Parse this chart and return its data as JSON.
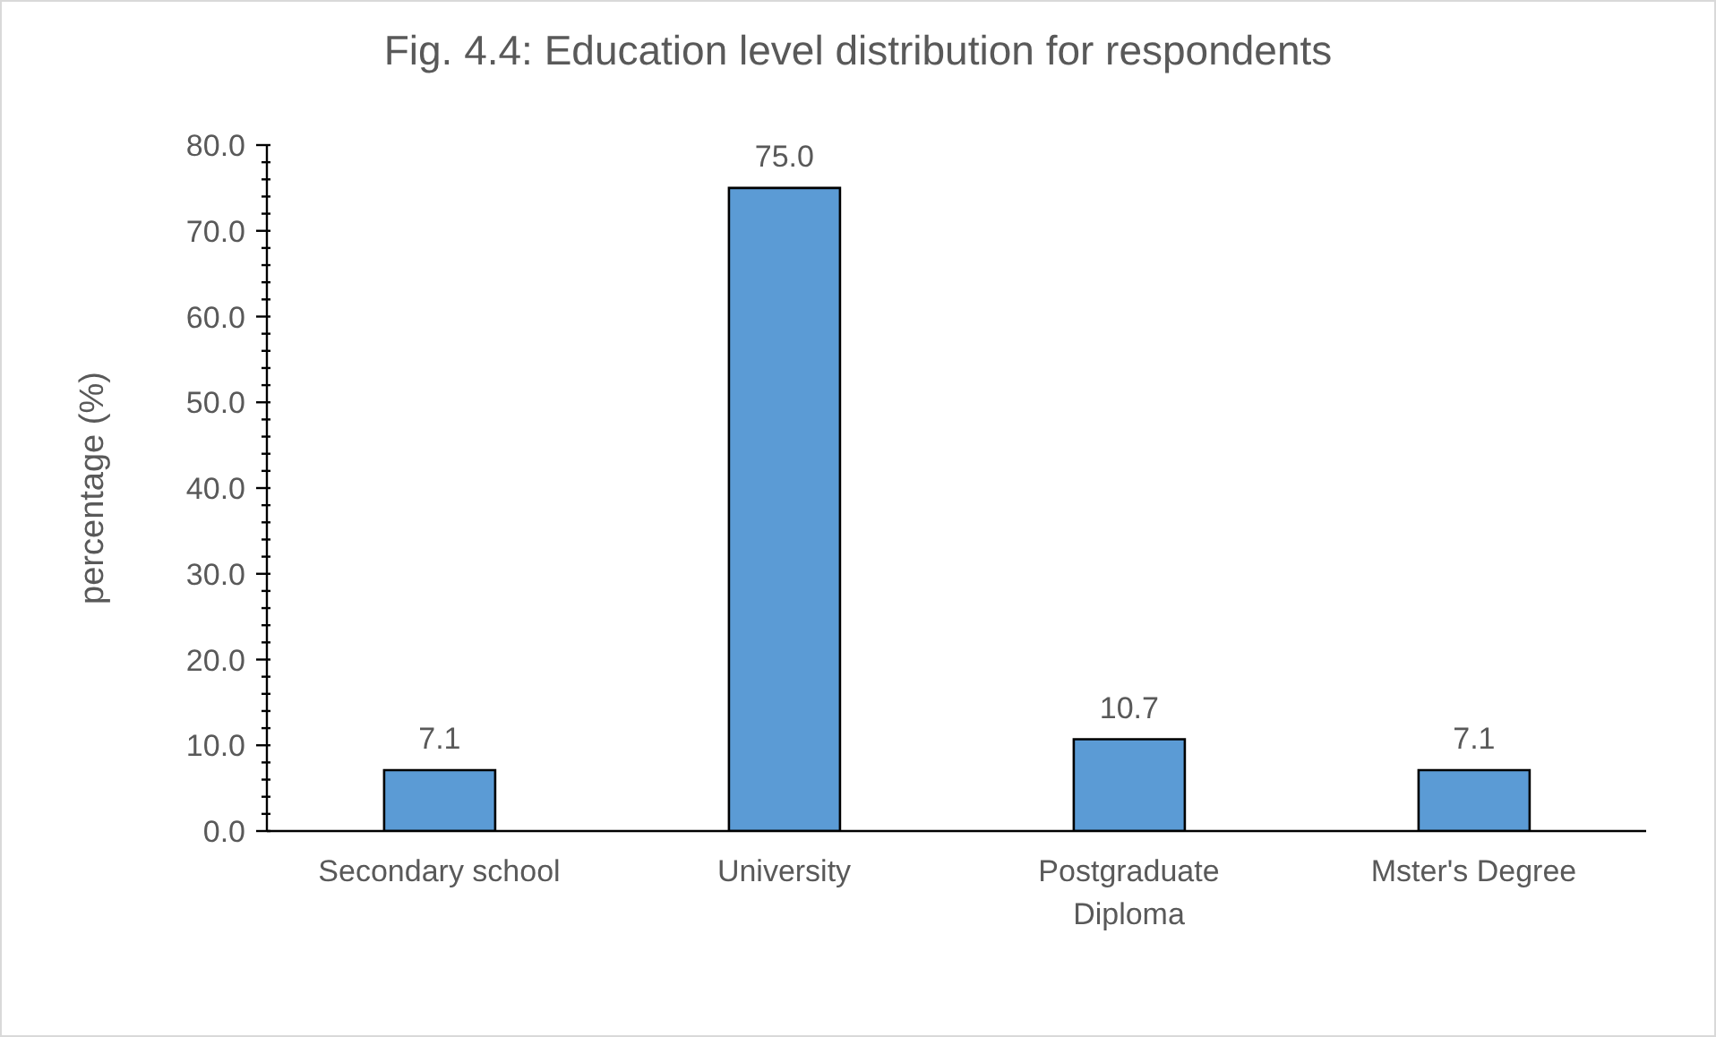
{
  "chart_data": {
    "type": "bar",
    "title": "Fig. 4.4: Education level distribution for respondents",
    "ylabel": "percentage (%)",
    "categories": [
      "Secondary school",
      "University",
      "Postgraduate Diploma",
      "Mster's Degree"
    ],
    "values": [
      7.1,
      75.0,
      10.7,
      7.1
    ],
    "value_labels": [
      "7.1",
      "75.0",
      "10.7",
      "7.1"
    ],
    "color": "#5b9bd5",
    "ylim": [
      0,
      80
    ],
    "yticks": [
      {
        "value": 0,
        "label": "0.0"
      },
      {
        "value": 2,
        "label": null
      },
      {
        "value": 4,
        "label": null
      },
      {
        "value": 6,
        "label": null
      },
      {
        "value": 8,
        "label": null
      },
      {
        "value": 10,
        "label": "10.0"
      },
      {
        "value": 12,
        "label": null
      },
      {
        "value": 14,
        "label": null
      },
      {
        "value": 16,
        "label": null
      },
      {
        "value": 18,
        "label": null
      },
      {
        "value": 20,
        "label": "20.0"
      },
      {
        "value": 22,
        "label": null
      },
      {
        "value": 24,
        "label": null
      },
      {
        "value": 26,
        "label": null
      },
      {
        "value": 28,
        "label": null
      },
      {
        "value": 30,
        "label": "30.0"
      },
      {
        "value": 32,
        "label": null
      },
      {
        "value": 34,
        "label": null
      },
      {
        "value": 36,
        "label": null
      },
      {
        "value": 38,
        "label": null
      },
      {
        "value": 40,
        "label": "40.0"
      },
      {
        "value": 42,
        "label": null
      },
      {
        "value": 44,
        "label": null
      },
      {
        "value": 46,
        "label": null
      },
      {
        "value": 48,
        "label": null
      },
      {
        "value": 50,
        "label": "50.0"
      },
      {
        "value": 52,
        "label": null
      },
      {
        "value": 54,
        "label": null
      },
      {
        "value": 56,
        "label": null
      },
      {
        "value": 58,
        "label": null
      },
      {
        "value": 60,
        "label": "60.0"
      },
      {
        "value": 62,
        "label": null
      },
      {
        "value": 64,
        "label": null
      },
      {
        "value": 66,
        "label": null
      },
      {
        "value": 68,
        "label": null
      },
      {
        "value": 70,
        "label": "70.0"
      },
      {
        "value": 72,
        "label": null
      },
      {
        "value": 74,
        "label": null
      },
      {
        "value": 76,
        "label": null
      },
      {
        "value": 78,
        "label": null
      },
      {
        "value": 80,
        "label": "80.0"
      }
    ],
    "grid": false,
    "legend": false
  }
}
